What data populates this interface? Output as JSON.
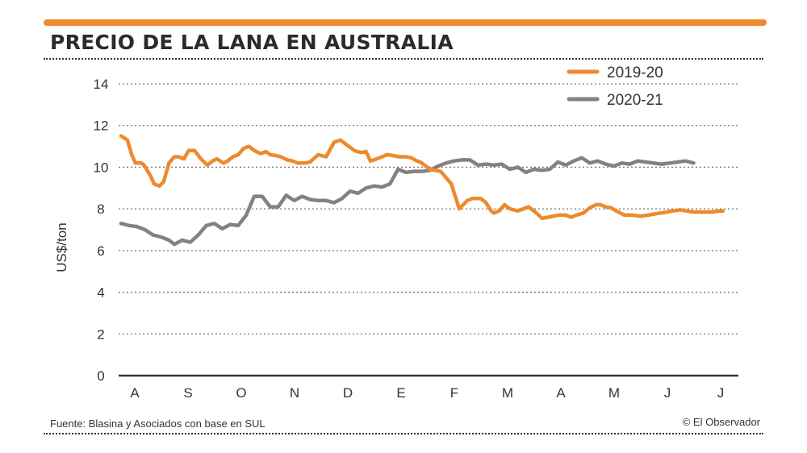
{
  "header": {
    "title": "PRECIO DE LA LANA EN AUSTRALIA",
    "accent_color": "#ec8a2d"
  },
  "footer": {
    "source": "Fuente: Blasina y Asociados con base en SUL",
    "credit": "© El Observador"
  },
  "chart_data": {
    "type": "line",
    "title": "PRECIO DE LA LANA EN AUSTRALIA",
    "xlabel": "",
    "ylabel": "US$/ton",
    "ylim": [
      0,
      14
    ],
    "yticks": [
      0,
      2,
      4,
      6,
      8,
      10,
      12,
      14
    ],
    "grid": true,
    "legend_position": "top-right",
    "categories": [
      "A",
      "S",
      "O",
      "N",
      "D",
      "E",
      "F",
      "M",
      "A",
      "M",
      "J",
      "J"
    ],
    "series": [
      {
        "name": "2019-20",
        "color": "#ec8a2d",
        "x": [
          0.0,
          0.12,
          0.2,
          0.27,
          0.38,
          0.43,
          0.55,
          0.62,
          0.72,
          0.8,
          0.9,
          1.0,
          1.08,
          1.18,
          1.27,
          1.38,
          1.5,
          1.62,
          1.72,
          1.8,
          1.92,
          2.0,
          2.1,
          2.2,
          2.3,
          2.4,
          2.5,
          2.62,
          2.72,
          2.8,
          2.92,
          3.0,
          3.12,
          3.22,
          3.32,
          3.45,
          3.55,
          3.7,
          3.85,
          4.0,
          4.12,
          4.25,
          4.38,
          4.5,
          4.6,
          4.68,
          4.75,
          4.85,
          4.95,
          5.0,
          5.12,
          5.22,
          5.35,
          5.45,
          5.55,
          5.62,
          5.8,
          6.0,
          6.2,
          6.35,
          6.5,
          6.6,
          6.75,
          6.85,
          6.95,
          7.0,
          7.1,
          7.2,
          7.3,
          7.45,
          7.55,
          7.65,
          7.8,
          7.9,
          8.02,
          8.12,
          8.22,
          8.35,
          8.45,
          8.55,
          8.68,
          8.8,
          8.92,
          9.0,
          9.1,
          9.2,
          9.3,
          9.45,
          9.6,
          9.75,
          9.9,
          10.0,
          10.12,
          10.25,
          10.35,
          10.5,
          10.62,
          10.75,
          10.85,
          10.95,
          11.1,
          11.22,
          11.3
        ],
        "values": [
          11.5,
          11.3,
          10.6,
          10.2,
          10.2,
          10.1,
          9.6,
          9.2,
          9.1,
          9.3,
          10.2,
          10.5,
          10.5,
          10.4,
          10.8,
          10.8,
          10.4,
          10.1,
          10.3,
          10.4,
          10.2,
          10.3,
          10.5,
          10.6,
          10.9,
          11.0,
          10.8,
          10.65,
          10.75,
          10.6,
          10.55,
          10.5,
          10.35,
          10.3,
          10.2,
          10.2,
          10.25,
          10.6,
          10.5,
          11.2,
          11.3,
          11.05,
          10.8,
          10.7,
          10.75,
          10.3,
          10.35,
          10.45,
          10.55,
          10.6,
          10.55,
          10.5,
          10.5,
          10.45,
          10.3,
          10.25,
          9.9,
          9.8,
          9.2,
          8.0,
          8.4,
          8.5,
          8.5,
          8.3,
          7.9,
          7.8,
          7.9,
          8.2,
          8.0,
          7.9,
          8.0,
          8.1,
          7.8,
          7.55,
          7.6,
          7.65,
          7.7,
          7.7,
          7.6,
          7.7,
          7.8,
          8.05,
          8.2,
          8.2,
          8.1,
          8.05,
          7.9,
          7.7,
          7.7,
          7.65,
          7.7,
          7.75,
          7.8,
          7.85,
          7.9,
          7.95,
          7.9,
          7.85,
          7.85,
          7.85,
          7.85,
          7.9,
          7.9
        ],
        "values_note": ""
      },
      {
        "name": "2020-21",
        "color": "#858081",
        "x": [
          0.0,
          0.15,
          0.3,
          0.45,
          0.6,
          0.75,
          0.9,
          1.0,
          1.15,
          1.3,
          1.45,
          1.6,
          1.75,
          1.9,
          2.05,
          2.2,
          2.35,
          2.5,
          2.65,
          2.8,
          2.95,
          3.1,
          3.25,
          3.4,
          3.55,
          3.7,
          3.85,
          4.0,
          4.15,
          4.3,
          4.45,
          4.6,
          4.75,
          4.9,
          5.05,
          5.2,
          5.35,
          5.5,
          5.65,
          5.8,
          5.95,
          6.1,
          6.25,
          6.4,
          6.55,
          6.7,
          6.85,
          7.0,
          7.15,
          7.3,
          7.45,
          7.6,
          7.75,
          7.9,
          8.05,
          8.2,
          8.35,
          8.5,
          8.65,
          8.8,
          8.95,
          9.1,
          9.25,
          9.4,
          9.55,
          9.7,
          9.85,
          10.0,
          10.15,
          10.3,
          10.45,
          10.6,
          10.75
        ],
        "values": [
          7.3,
          7.2,
          7.15,
          7.0,
          6.75,
          6.65,
          6.5,
          6.3,
          6.5,
          6.4,
          6.75,
          7.2,
          7.3,
          7.05,
          7.25,
          7.2,
          7.7,
          8.6,
          8.6,
          8.1,
          8.1,
          8.65,
          8.4,
          8.6,
          8.45,
          8.4,
          8.4,
          8.3,
          8.5,
          8.85,
          8.75,
          9.0,
          9.1,
          9.05,
          9.2,
          9.9,
          9.75,
          9.8,
          9.8,
          9.85,
          10.05,
          10.2,
          10.3,
          10.35,
          10.35,
          10.1,
          10.15,
          10.1,
          10.15,
          9.9,
          10.0,
          9.75,
          9.9,
          9.85,
          9.9,
          10.25,
          10.1,
          10.3,
          10.45,
          10.2,
          10.3,
          10.15,
          10.05,
          10.2,
          10.15,
          10.3,
          10.25,
          10.2,
          10.15,
          10.2,
          10.25,
          10.3,
          10.2
        ],
        "values_note": ""
      }
    ]
  }
}
